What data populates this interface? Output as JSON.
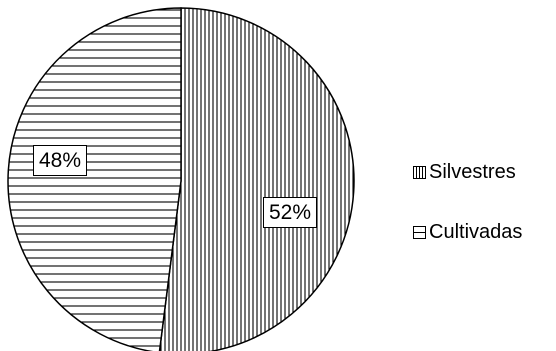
{
  "chart_data": {
    "type": "pie",
    "title": "",
    "slices": [
      {
        "label": "Silvestres",
        "value": 52,
        "value_label": "52%",
        "pattern": "vertical-lines"
      },
      {
        "label": "Cultivadas",
        "value": 48,
        "value_label": "48%",
        "pattern": "horizontal-lines"
      }
    ],
    "legend_position": "right",
    "start_angle": "12 o'clock",
    "direction": "clockwise",
    "colors": {
      "stroke": "#000000",
      "fill": "#ffffff"
    }
  }
}
